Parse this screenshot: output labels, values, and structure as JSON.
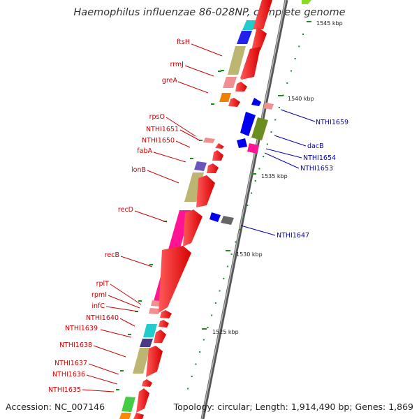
{
  "title": "Haemophilus influenzae 86-028NP, complete genome",
  "accession": "Accession: NC_007146",
  "topology": "Topology: circular; Length: 1,914,490 bp; Genes: 1,869",
  "kbp_labels": [
    "1545 kbp",
    "1540 kbp",
    "1535 kbp",
    "1530 kbp",
    "1525 kbp"
  ],
  "forward_gene_labels": [
    "ftsH",
    "rrmJ",
    "greA",
    "rpsO",
    "NTHI1651",
    "NTHI1650",
    "fabA",
    "lonB",
    "recD",
    "recB",
    "rplT",
    "rpmI",
    "infC",
    "NTHI1640",
    "NTHI1639",
    "NTHI1638",
    "NTHI1637",
    "NTHI1636",
    "NTHI1635"
  ],
  "reverse_gene_labels": [
    "NTHI1659",
    "dacB",
    "NTHI1654",
    "NTHI1653",
    "NTHI1647"
  ],
  "colors": {
    "backbone": "#888888",
    "forward_strand": "#ff0000",
    "reverse_strand": "#0000ee",
    "forward_label": "#cc0000",
    "reverse_label": "#0000aa",
    "tick": "#228822"
  }
}
